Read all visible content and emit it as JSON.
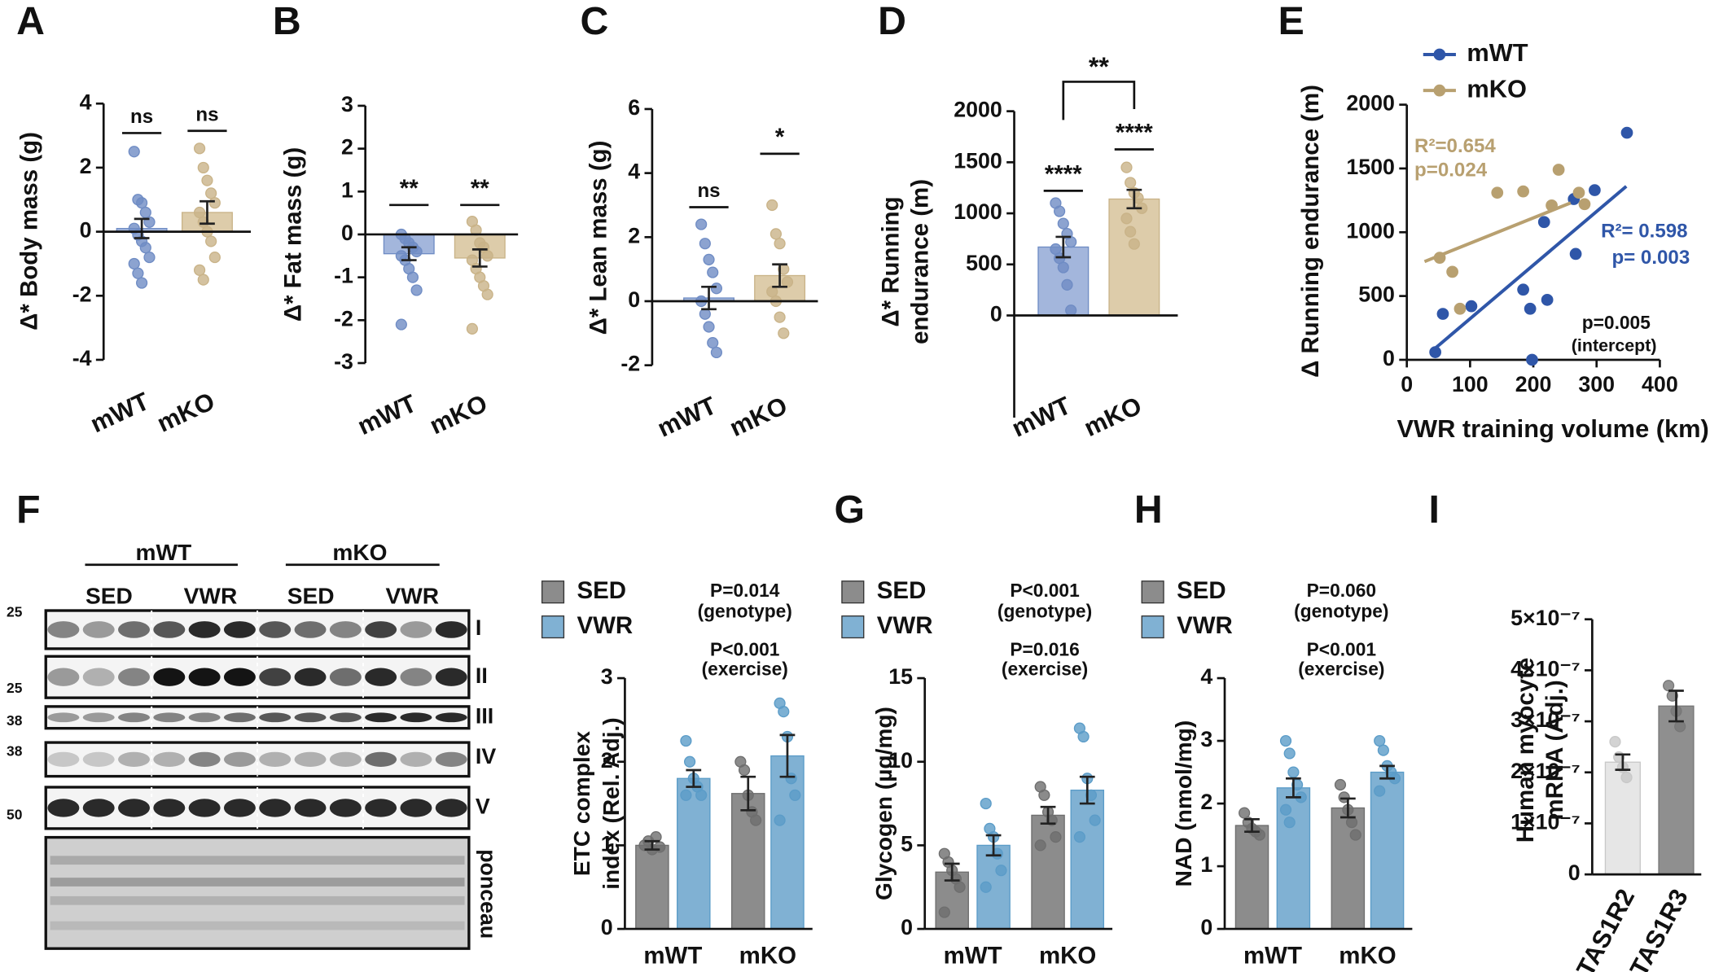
{
  "chart_data": [
    {
      "type": "bar",
      "panel": "A",
      "ylabel": [
        "Δ* Body mass (g)"
      ],
      "ylim": [
        -4,
        4
      ],
      "yticks": [
        -4,
        -2,
        0,
        2,
        4
      ],
      "categories": [
        "mWT",
        "mKO"
      ],
      "values": [
        0.1,
        0.6
      ],
      "errors": [
        0.3,
        0.35
      ],
      "points": [
        [
          2.5,
          1.0,
          0.9,
          0.6,
          0.3,
          0.1,
          -0.1,
          -0.3,
          -0.5,
          -0.8,
          -1.0,
          -1.3,
          -1.6
        ],
        [
          2.6,
          2.0,
          1.6,
          1.2,
          0.9,
          0.6,
          0.3,
          0.0,
          -0.3,
          -0.8,
          -1.2,
          -1.5
        ]
      ],
      "colors": [
        "#a3b6dc",
        "#ddccaa"
      ],
      "point_colors": [
        "#6f8cc4",
        "#c9b388"
      ],
      "significance": [
        "ns",
        "ns"
      ]
    },
    {
      "type": "bar",
      "panel": "B",
      "ylabel": [
        "Δ* Fat mass (g)"
      ],
      "ylim": [
        -3,
        3
      ],
      "yticks": [
        -3,
        -2,
        -1,
        0,
        1,
        2,
        3
      ],
      "categories": [
        "mWT",
        "mKO"
      ],
      "values": [
        -0.45,
        -0.55
      ],
      "errors": [
        0.15,
        0.2
      ],
      "points": [
        [
          0.0,
          -0.1,
          -0.2,
          -0.3,
          -0.4,
          -0.5,
          -0.6,
          -0.8,
          -1.0,
          -1.3,
          -2.1
        ],
        [
          0.3,
          0.1,
          -0.2,
          -0.3,
          -0.5,
          -0.6,
          -0.8,
          -1.0,
          -1.2,
          -1.4,
          -2.2
        ]
      ],
      "colors": [
        "#a3b6dc",
        "#ddccaa"
      ],
      "point_colors": [
        "#6f8cc4",
        "#c9b388"
      ],
      "significance": [
        "**",
        "**"
      ]
    },
    {
      "type": "bar",
      "panel": "C",
      "ylabel": [
        "Δ* Lean mass (g)"
      ],
      "ylim": [
        -2,
        6
      ],
      "yticks": [
        -2,
        0,
        2,
        4,
        6
      ],
      "categories": [
        "mWT",
        "mKO"
      ],
      "values": [
        0.1,
        0.8
      ],
      "errors": [
        0.35,
        0.35
      ],
      "points": [
        [
          2.4,
          1.8,
          1.3,
          0.9,
          0.4,
          0.0,
          -0.4,
          -0.8,
          -1.3,
          -1.6
        ],
        [
          3.0,
          2.1,
          1.8,
          1.0,
          0.6,
          0.3,
          0.0,
          -0.5,
          -1.0
        ]
      ],
      "colors": [
        "#a3b6dc",
        "#ddccaa"
      ],
      "point_colors": [
        "#6f8cc4",
        "#c9b388"
      ],
      "significance": [
        "ns",
        "*"
      ]
    },
    {
      "type": "bar",
      "panel": "D",
      "ylabel": [
        "Δ* Running",
        "endurance (m)"
      ],
      "ylim": [
        -1000,
        2000
      ],
      "yticks": [
        0,
        500,
        1000,
        1500,
        2000
      ],
      "categories": [
        "mWT",
        "mKO"
      ],
      "values": [
        670,
        1140
      ],
      "errors": [
        100,
        90
      ],
      "points": [
        [
          1100,
          1020,
          900,
          800,
          720,
          650,
          560,
          470,
          300,
          50
        ],
        [
          1450,
          1300,
          1200,
          1150,
          1050,
          950,
          820,
          700
        ]
      ],
      "colors": [
        "#a3b6dc",
        "#ddccaa"
      ],
      "point_colors": [
        "#6f8cc4",
        "#c9b388"
      ],
      "significance": [
        "****",
        "****"
      ],
      "bracket_label": "**"
    },
    {
      "type": "scatter",
      "panel": "E",
      "xlabel": "VWR training volume (km)",
      "ylabel": [
        "Δ Running endurance (m)"
      ],
      "xlim": [
        0,
        400
      ],
      "xticks": [
        0,
        100,
        200,
        300,
        400
      ],
      "ylim": [
        0,
        2000
      ],
      "yticks": [
        0,
        500,
        1000,
        1500,
        2000
      ],
      "series": [
        {
          "name": "mWT",
          "color": "#2f56a8",
          "x": [
            45,
            57,
            102,
            184,
            195,
            198,
            217,
            222,
            264,
            267,
            297,
            348
          ],
          "values": [
            60,
            360,
            420,
            550,
            400,
            0,
            1080,
            470,
            1260,
            830,
            1330,
            1780
          ],
          "fit": {
            "x": [
              40,
              347
            ],
            "y": [
              70,
              1360
            ]
          },
          "annotation": [
            "R²= 0.598",
            "p= 0.003"
          ]
        },
        {
          "name": "mKO",
          "color": "#b8a070",
          "x": [
            52,
            72,
            84,
            143,
            184,
            229,
            240,
            272,
            281
          ],
          "values": [
            800,
            690,
            400,
            1310,
            1320,
            1210,
            1490,
            1310,
            1220
          ],
          "fit": {
            "x": [
              28,
              259
            ],
            "y": [
              770,
              1230
            ]
          },
          "annotation": [
            "R²=0.654",
            "p=0.024"
          ]
        }
      ],
      "annotations": [
        "p=0.005",
        "(intercept)"
      ]
    },
    {
      "type": "grouped_bar",
      "panel": "F",
      "ylabel": [
        "ETC complex",
        "index (Rel. Adj.)"
      ],
      "ylim": [
        0,
        3
      ],
      "yticks": [
        0,
        1,
        2,
        3
      ],
      "categories": [
        "mWT",
        "mKO"
      ],
      "series": [
        {
          "name": "SED",
          "color": "#8c8c8c",
          "point_color": "#6e6e6e",
          "values": [
            1.0,
            1.62
          ],
          "errors": [
            0.05,
            0.2
          ],
          "points": [
            [
              1.0,
              1.05,
              0.95,
              1.1,
              0.98
            ],
            [
              2.0,
              1.9,
              1.6,
              1.4,
              1.3
            ]
          ]
        },
        {
          "name": "VWR",
          "color": "#80b1d3",
          "point_color": "#5b9cc8",
          "values": [
            1.8,
            2.07
          ],
          "errors": [
            0.1,
            0.25
          ],
          "points": [
            [
              2.25,
              2.0,
              1.8,
              1.7,
              1.6,
              1.6
            ],
            [
              2.7,
              2.6,
              2.3,
              1.8,
              1.6,
              1.3
            ]
          ]
        }
      ],
      "annotations": [
        "P=0.014",
        "(genotype)",
        "P<0.001",
        "(exercise)"
      ]
    },
    {
      "type": "grouped_bar",
      "panel": "G",
      "ylabel": [
        "Glycogen (µg/mg)"
      ],
      "ylim": [
        0,
        15
      ],
      "yticks": [
        0,
        5,
        10,
        15
      ],
      "categories": [
        "mWT",
        "mKO"
      ],
      "series": [
        {
          "name": "SED",
          "color": "#8c8c8c",
          "point_color": "#6e6e6e",
          "values": [
            3.4,
            6.8
          ],
          "errors": [
            0.5,
            0.5
          ],
          "points": [
            [
              4.5,
              4.0,
              3.5,
              3.0,
              2.5,
              1.0
            ],
            [
              8.5,
              8.0,
              7.0,
              6.5,
              5.5,
              5.0
            ]
          ]
        },
        {
          "name": "VWR",
          "color": "#80b1d3",
          "point_color": "#5b9cc8",
          "values": [
            5.0,
            8.3
          ],
          "errors": [
            0.6,
            0.8
          ],
          "points": [
            [
              7.5,
              6.0,
              5.5,
              4.5,
              3.5,
              2.5
            ],
            [
              12,
              11.5,
              9.0,
              8.0,
              6.5,
              5.5
            ]
          ]
        }
      ],
      "annotations": [
        "P<0.001",
        "(genotype)",
        "P=0.016",
        "(exercise)"
      ]
    },
    {
      "type": "grouped_bar",
      "panel": "H",
      "ylabel": [
        "NAD (nmol/mg)"
      ],
      "ylim": [
        0,
        4
      ],
      "yticks": [
        0,
        1,
        2,
        3,
        4
      ],
      "categories": [
        "mWT",
        "mKO"
      ],
      "series": [
        {
          "name": "SED",
          "color": "#8c8c8c",
          "point_color": "#6e6e6e",
          "values": [
            1.65,
            1.93
          ],
          "errors": [
            0.1,
            0.15
          ],
          "points": [
            [
              1.85,
              1.7,
              1.6,
              1.55,
              1.5
            ],
            [
              2.3,
              2.1,
              1.9,
              1.7,
              1.5
            ]
          ]
        },
        {
          "name": "VWR",
          "color": "#80b1d3",
          "point_color": "#5b9cc8",
          "values": [
            2.25,
            2.5
          ],
          "errors": [
            0.15,
            0.1
          ],
          "points": [
            [
              3.0,
              2.8,
              2.5,
              2.3,
              2.1,
              1.9,
              1.7
            ],
            [
              3.0,
              2.85,
              2.6,
              2.5,
              2.4,
              2.2
            ]
          ]
        }
      ],
      "annotations": [
        "P=0.060",
        "(genotype)",
        "P<0.001",
        "(exercise)"
      ]
    },
    {
      "type": "bar",
      "panel": "I",
      "ylabel": [
        "Human myocyte",
        "mRNA (Adj.)"
      ],
      "ylim": [
        0,
        5e-07
      ],
      "yticks": [
        0,
        {
          "value": 1e-07,
          "label": "1×10⁻⁷"
        },
        {
          "value": 2e-07,
          "label": "2×10⁻⁷"
        },
        {
          "value": 3e-07,
          "label": "3×10⁻⁷"
        },
        {
          "value": 4e-07,
          "label": "4×10⁻⁷"
        },
        {
          "value": 5e-07,
          "label": "5×10⁻⁷"
        }
      ],
      "categories": [
        "TAS1R2",
        "TAS1R3"
      ],
      "values": [
        2.2e-07,
        3.3e-07
      ],
      "errors": [
        1.5e-08,
        3e-08
      ],
      "points": [
        [
          2.6e-07,
          2.3e-07,
          2.1e-07,
          1.9e-07
        ],
        [
          3.7e-07,
          3.5e-07,
          3.2e-07,
          2.9e-07
        ]
      ],
      "colors": [
        "#e6e6e6",
        "#8f8f8f"
      ],
      "point_colors": [
        "#c8c8c8",
        "#777777"
      ]
    }
  ],
  "blot": {
    "groups": [
      "mWT",
      "mKO"
    ],
    "conditions": [
      "SED",
      "VWR",
      "SED",
      "VWR"
    ],
    "markers": [
      25,
      25,
      38,
      38,
      50
    ],
    "complexes": [
      "I",
      "II",
      "III",
      "IV",
      "V"
    ],
    "stain": "ponceau"
  }
}
